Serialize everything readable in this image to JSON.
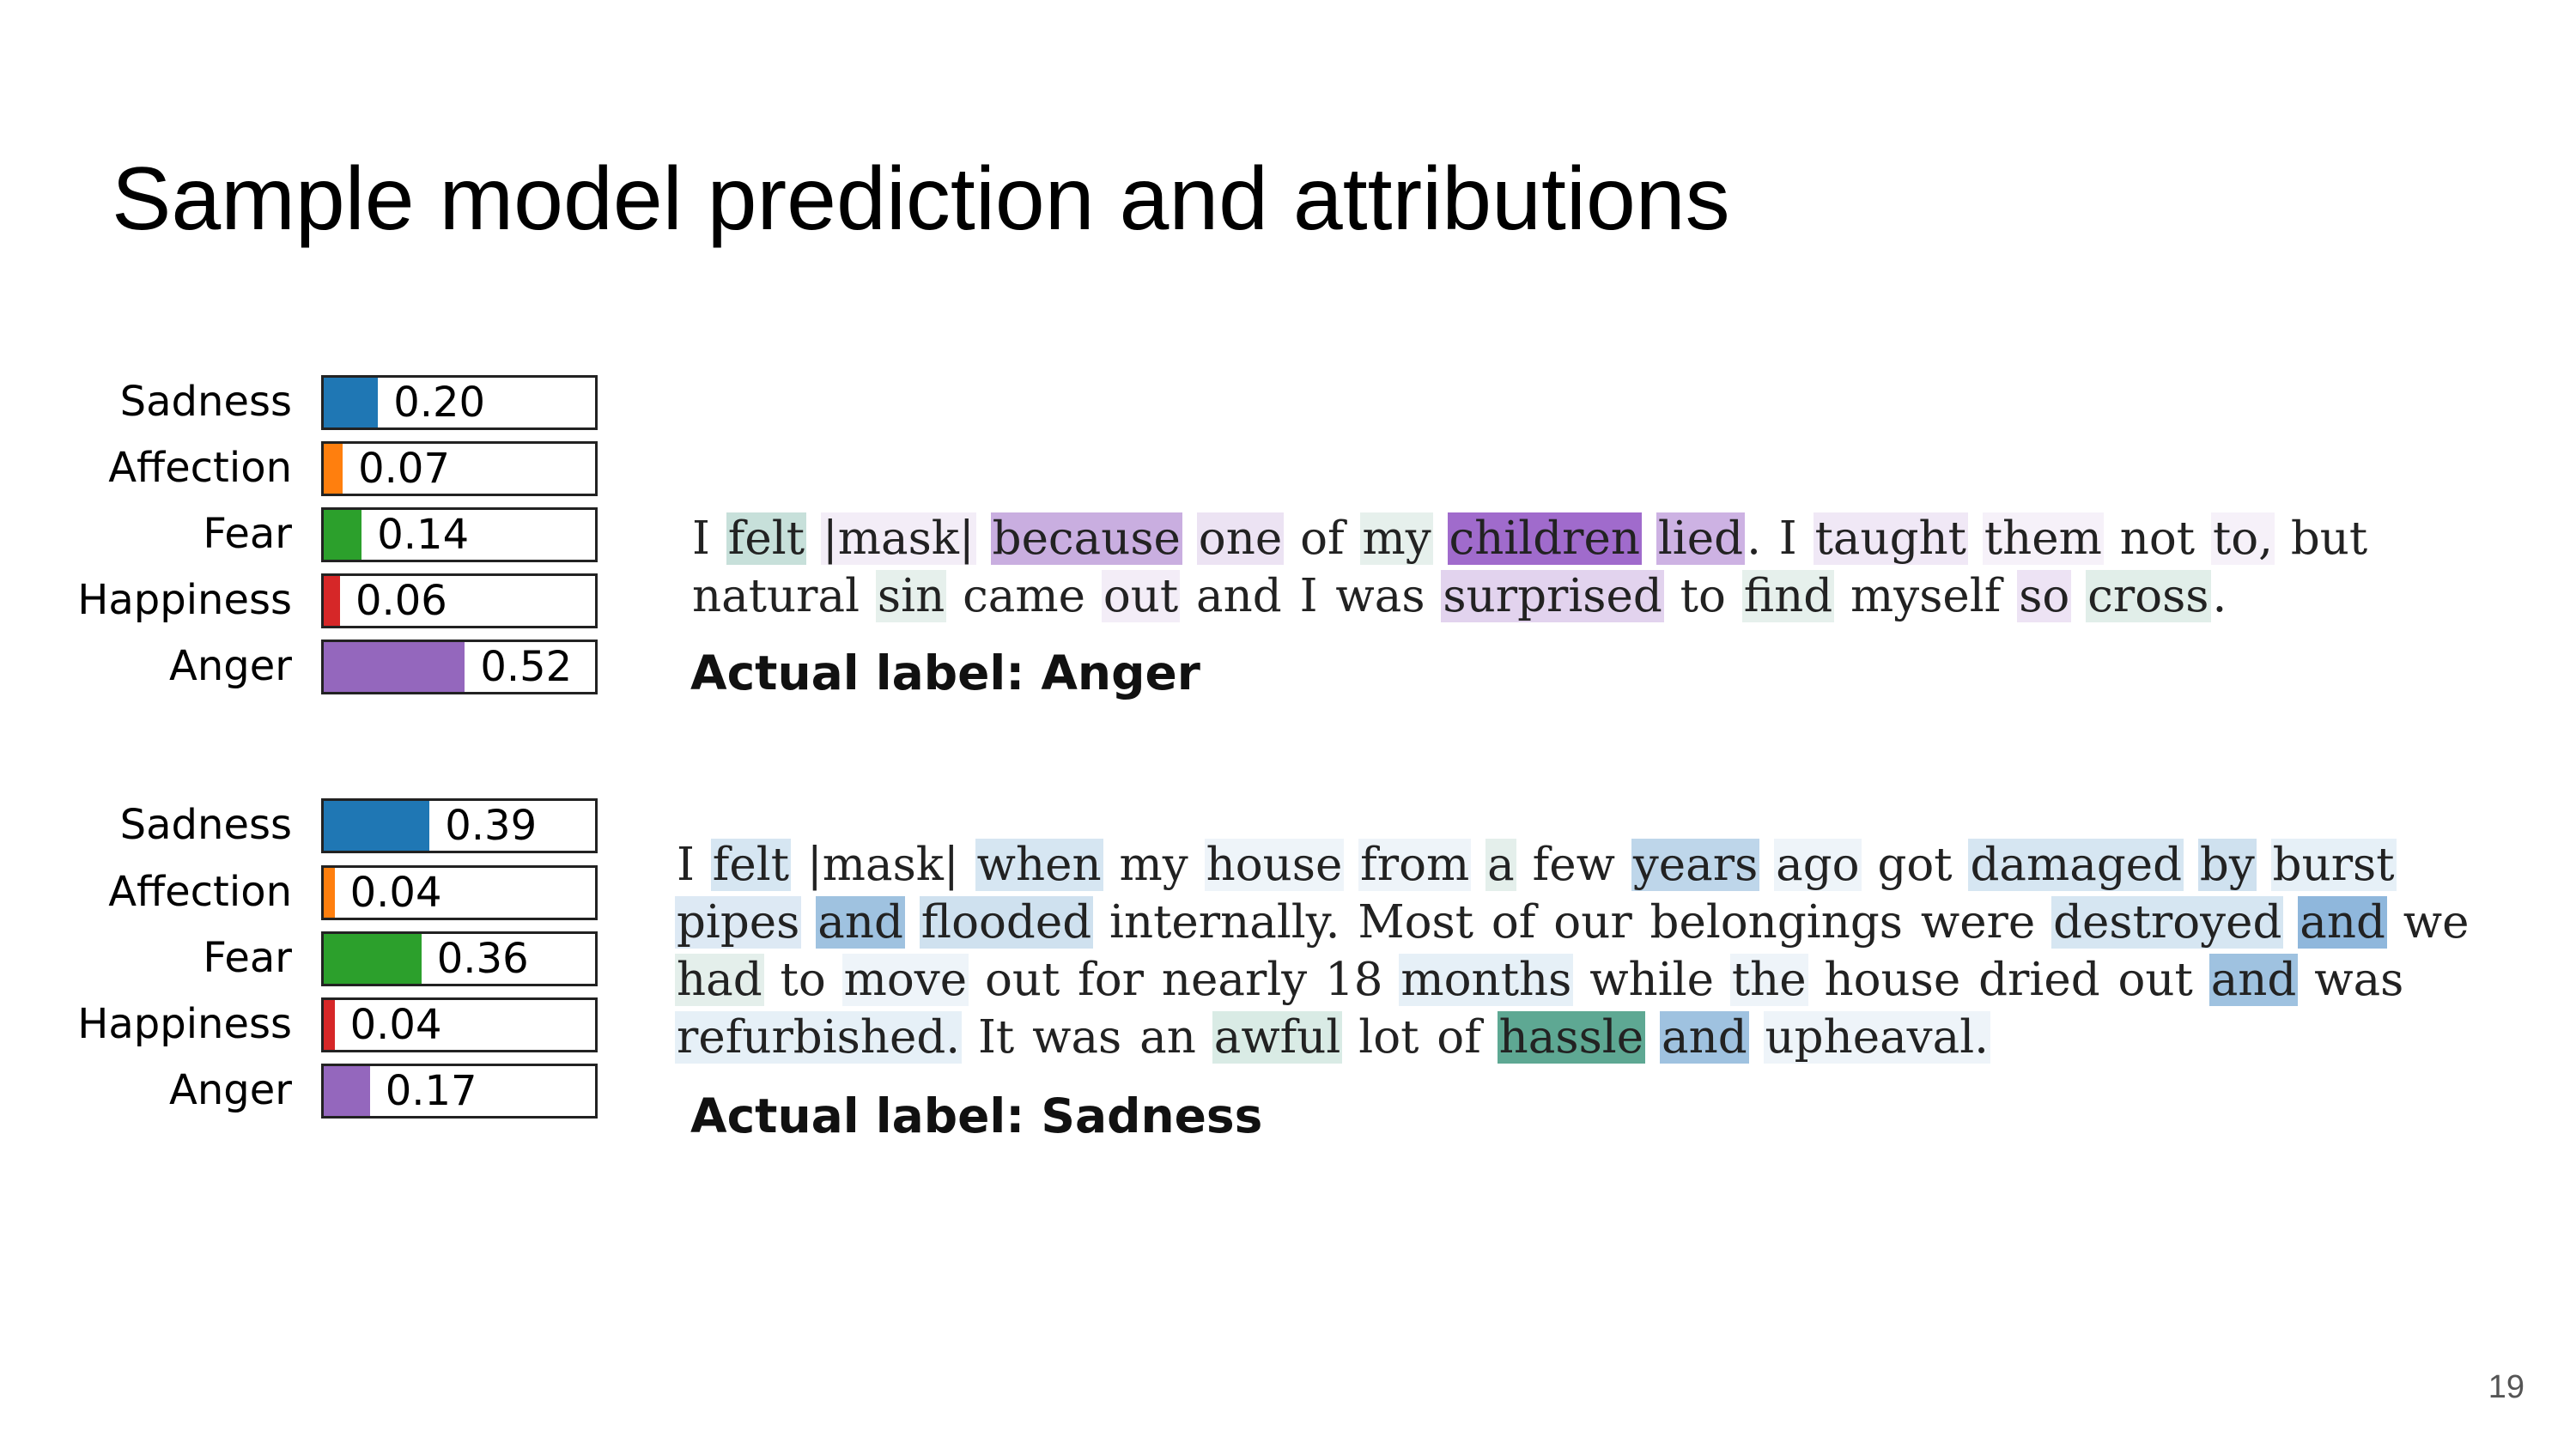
{
  "slide": {
    "title": "Sample model prediction and attributions",
    "page_number": "19"
  },
  "examples": [
    {
      "predictions": [
        {
          "label": "Sadness",
          "value": 0.2,
          "display": "0.20",
          "color": "#1f77b4"
        },
        {
          "label": "Affection",
          "value": 0.07,
          "display": "0.07",
          "color": "#ff7f0e"
        },
        {
          "label": "Fear",
          "value": 0.14,
          "display": "0.14",
          "color": "#2ca02c"
        },
        {
          "label": "Happiness",
          "value": 0.06,
          "display": "0.06",
          "color": "#d62728"
        },
        {
          "label": "Anger",
          "value": 0.52,
          "display": "0.52",
          "color": "#9467bd"
        }
      ],
      "lines": [
        [
          {
            "t": "I",
            "bg": ""
          },
          {
            "t": " ",
            "bg": ""
          },
          {
            "t": "felt",
            "bg": "#c7e0da"
          },
          {
            "t": " ",
            "bg": ""
          },
          {
            "t": "|mask|",
            "bg": "#f3edf7"
          },
          {
            "t": " ",
            "bg": ""
          },
          {
            "t": "because",
            "bg": "#c9aee0"
          },
          {
            "t": " ",
            "bg": ""
          },
          {
            "t": "one",
            "bg": "#ece3f3"
          },
          {
            "t": " ",
            "bg": ""
          },
          {
            "t": "of",
            "bg": ""
          },
          {
            "t": " ",
            "bg": ""
          },
          {
            "t": "my",
            "bg": "#e6f0ec"
          },
          {
            "t": " ",
            "bg": ""
          },
          {
            "t": "children",
            "bg": "#a06bcc"
          },
          {
            "t": " ",
            "bg": ""
          },
          {
            "t": "lied",
            "bg": "#cdb2e3"
          },
          {
            "t": ". ",
            "bg": ""
          },
          {
            "t": "I",
            "bg": ""
          },
          {
            "t": " ",
            "bg": ""
          },
          {
            "t": "taught",
            "bg": "#f0e8f6"
          },
          {
            "t": " ",
            "bg": ""
          },
          {
            "t": "them",
            "bg": "#f6f1f9"
          },
          {
            "t": " ",
            "bg": ""
          },
          {
            "t": "not",
            "bg": ""
          },
          {
            "t": " ",
            "bg": ""
          },
          {
            "t": "to,",
            "bg": "#f6f1f9"
          },
          {
            "t": " ",
            "bg": ""
          },
          {
            "t": "but",
            "bg": ""
          }
        ],
        [
          {
            "t": "natural",
            "bg": ""
          },
          {
            "t": " ",
            "bg": ""
          },
          {
            "t": "sin",
            "bg": "#e6f0ec"
          },
          {
            "t": " ",
            "bg": ""
          },
          {
            "t": "came",
            "bg": ""
          },
          {
            "t": " ",
            "bg": ""
          },
          {
            "t": "out",
            "bg": "#f3edf7"
          },
          {
            "t": " ",
            "bg": ""
          },
          {
            "t": "and",
            "bg": ""
          },
          {
            "t": " ",
            "bg": ""
          },
          {
            "t": "I",
            "bg": ""
          },
          {
            "t": " ",
            "bg": ""
          },
          {
            "t": "was",
            "bg": ""
          },
          {
            "t": " ",
            "bg": ""
          },
          {
            "t": "surprised",
            "bg": "#e2d3ee"
          },
          {
            "t": " ",
            "bg": ""
          },
          {
            "t": "to",
            "bg": ""
          },
          {
            "t": " ",
            "bg": ""
          },
          {
            "t": "find",
            "bg": "#e6f0ec"
          },
          {
            "t": " ",
            "bg": ""
          },
          {
            "t": "myself",
            "bg": ""
          },
          {
            "t": " ",
            "bg": ""
          },
          {
            "t": "so",
            "bg": "#ede3f4"
          },
          {
            "t": " ",
            "bg": ""
          },
          {
            "t": "cross",
            "bg": "#e1eee9"
          },
          {
            "t": ".",
            "bg": ""
          }
        ]
      ],
      "actual_label": "Actual label: Anger"
    },
    {
      "predictions": [
        {
          "label": "Sadness",
          "value": 0.39,
          "display": "0.39",
          "color": "#1f77b4"
        },
        {
          "label": "Affection",
          "value": 0.04,
          "display": "0.04",
          "color": "#ff7f0e"
        },
        {
          "label": "Fear",
          "value": 0.36,
          "display": "0.36",
          "color": "#2ca02c"
        },
        {
          "label": "Happiness",
          "value": 0.04,
          "display": "0.04",
          "color": "#d62728"
        },
        {
          "label": "Anger",
          "value": 0.17,
          "display": "0.17",
          "color": "#9467bd"
        }
      ],
      "lines": [
        [
          {
            "t": "I",
            "bg": ""
          },
          {
            "t": " ",
            "bg": ""
          },
          {
            "t": "felt",
            "bg": "#d6e6f2"
          },
          {
            "t": " ",
            "bg": ""
          },
          {
            "t": "|mask|",
            "bg": ""
          },
          {
            "t": " ",
            "bg": ""
          },
          {
            "t": "when",
            "bg": "#d6e6f2"
          },
          {
            "t": " ",
            "bg": ""
          },
          {
            "t": "my",
            "bg": ""
          },
          {
            "t": " ",
            "bg": ""
          },
          {
            "t": "house",
            "bg": "#eef4f9"
          },
          {
            "t": " ",
            "bg": ""
          },
          {
            "t": "from",
            "bg": "#eef4f9"
          },
          {
            "t": " ",
            "bg": ""
          },
          {
            "t": "a",
            "bg": "#e4efeb"
          },
          {
            "t": " ",
            "bg": ""
          },
          {
            "t": "few",
            "bg": ""
          },
          {
            "t": " ",
            "bg": ""
          },
          {
            "t": "years",
            "bg": "#bed6ea"
          },
          {
            "t": " ",
            "bg": ""
          },
          {
            "t": "ago",
            "bg": "#eef4f9"
          },
          {
            "t": " ",
            "bg": ""
          },
          {
            "t": "got",
            "bg": ""
          },
          {
            "t": " ",
            "bg": ""
          },
          {
            "t": "damaged",
            "bg": "#d6e6f2"
          },
          {
            "t": " ",
            "bg": ""
          },
          {
            "t": "by",
            "bg": "#cfe1ef"
          },
          {
            "t": " ",
            "bg": ""
          },
          {
            "t": "burst",
            "bg": "#e6f0f7"
          }
        ],
        [
          {
            "t": "pipes",
            "bg": "#dde9f4"
          },
          {
            "t": " ",
            "bg": ""
          },
          {
            "t": "and",
            "bg": "#9fc2e0"
          },
          {
            "t": " ",
            "bg": ""
          },
          {
            "t": "flooded",
            "bg": "#cfe1ef"
          },
          {
            "t": " ",
            "bg": ""
          },
          {
            "t": "internally.",
            "bg": ""
          },
          {
            "t": " ",
            "bg": ""
          },
          {
            "t": "Most",
            "bg": ""
          },
          {
            "t": " ",
            "bg": ""
          },
          {
            "t": "of",
            "bg": ""
          },
          {
            "t": " ",
            "bg": ""
          },
          {
            "t": "our",
            "bg": ""
          },
          {
            "t": " ",
            "bg": ""
          },
          {
            "t": "belongings",
            "bg": ""
          },
          {
            "t": " ",
            "bg": ""
          },
          {
            "t": "were",
            "bg": ""
          },
          {
            "t": " ",
            "bg": ""
          },
          {
            "t": "destroyed",
            "bg": "#d6e6f2"
          },
          {
            "t": " ",
            "bg": ""
          },
          {
            "t": "and",
            "bg": "#8fb7dc"
          },
          {
            "t": " ",
            "bg": ""
          },
          {
            "t": "we",
            "bg": ""
          }
        ],
        [
          {
            "t": "had",
            "bg": "#e4efeb"
          },
          {
            "t": " ",
            "bg": ""
          },
          {
            "t": "to",
            "bg": ""
          },
          {
            "t": " ",
            "bg": ""
          },
          {
            "t": "move",
            "bg": "#eef4f9"
          },
          {
            "t": " ",
            "bg": ""
          },
          {
            "t": "out",
            "bg": ""
          },
          {
            "t": " ",
            "bg": ""
          },
          {
            "t": "for",
            "bg": ""
          },
          {
            "t": " ",
            "bg": ""
          },
          {
            "t": "nearly",
            "bg": ""
          },
          {
            "t": " ",
            "bg": ""
          },
          {
            "t": "18",
            "bg": ""
          },
          {
            "t": " ",
            "bg": ""
          },
          {
            "t": "months",
            "bg": "#e6f0f7"
          },
          {
            "t": " ",
            "bg": ""
          },
          {
            "t": "while",
            "bg": ""
          },
          {
            "t": " ",
            "bg": ""
          },
          {
            "t": "the",
            "bg": "#eef4f9"
          },
          {
            "t": " ",
            "bg": ""
          },
          {
            "t": "house",
            "bg": ""
          },
          {
            "t": " ",
            "bg": ""
          },
          {
            "t": "dried",
            "bg": ""
          },
          {
            "t": " ",
            "bg": ""
          },
          {
            "t": "out",
            "bg": ""
          },
          {
            "t": " ",
            "bg": ""
          },
          {
            "t": "and",
            "bg": "#9fc2e0"
          },
          {
            "t": " ",
            "bg": ""
          },
          {
            "t": "was",
            "bg": ""
          }
        ],
        [
          {
            "t": "refurbished.",
            "bg": "#e6f0f7"
          },
          {
            "t": " ",
            "bg": ""
          },
          {
            "t": "It",
            "bg": ""
          },
          {
            "t": " ",
            "bg": ""
          },
          {
            "t": "was",
            "bg": ""
          },
          {
            "t": " ",
            "bg": ""
          },
          {
            "t": "an",
            "bg": ""
          },
          {
            "t": " ",
            "bg": ""
          },
          {
            "t": "awful",
            "bg": "#d9ebe5"
          },
          {
            "t": " ",
            "bg": ""
          },
          {
            "t": "lot",
            "bg": ""
          },
          {
            "t": " ",
            "bg": ""
          },
          {
            "t": "of",
            "bg": ""
          },
          {
            "t": " ",
            "bg": ""
          },
          {
            "t": "hassle",
            "bg": "#5ea893"
          },
          {
            "t": " ",
            "bg": ""
          },
          {
            "t": "and",
            "bg": "#9fc2e0"
          },
          {
            "t": " ",
            "bg": ""
          },
          {
            "t": "upheaval.",
            "bg": "#eef4f9"
          }
        ]
      ],
      "actual_label": "Actual label: Sadness"
    }
  ]
}
